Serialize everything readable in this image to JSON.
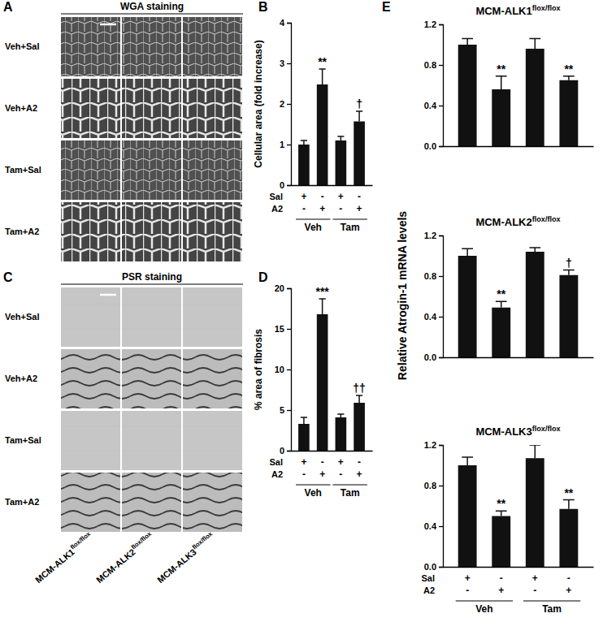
{
  "chart_data": [
    {
      "type": "bar",
      "panel": "B",
      "ylabel": "Cellular area (fold increase)",
      "categories": [
        null,
        null,
        null,
        null
      ],
      "values": [
        1.0,
        2.48,
        1.1,
        1.57
      ],
      "errors": [
        0.1,
        0.38,
        0.1,
        0.25
      ],
      "significance": [
        null,
        "**",
        null,
        "†"
      ],
      "color": "#111111",
      "ylim": [
        0,
        4
      ],
      "yticks": [
        0,
        1,
        2,
        3,
        4
      ],
      "x_table": [
        {
          "label": "Sal",
          "values": [
            "+",
            "-",
            "+",
            "-"
          ]
        },
        {
          "label": "A2",
          "values": [
            "-",
            "+",
            "-",
            "+"
          ]
        }
      ],
      "groups": [
        "Veh",
        "Tam"
      ]
    },
    {
      "type": "bar",
      "panel": "D",
      "ylabel": "% area of fibrosis",
      "categories": [
        null,
        null,
        null,
        null
      ],
      "values": [
        3.3,
        16.8,
        4.1,
        5.9
      ],
      "errors": [
        0.8,
        1.9,
        0.4,
        0.9
      ],
      "significance": [
        null,
        "***",
        null,
        "††"
      ],
      "color": "#111111",
      "ylim": [
        0,
        20
      ],
      "yticks": [
        0,
        5,
        10,
        15,
        20
      ],
      "x_table": [
        {
          "label": "Sal",
          "values": [
            "+",
            "-",
            "+",
            "-"
          ]
        },
        {
          "label": "A2",
          "values": [
            "-",
            "+",
            "-",
            "+"
          ]
        }
      ],
      "groups": [
        "Veh",
        "Tam"
      ]
    },
    {
      "type": "bar",
      "panel": "E",
      "title": "MCM-ALK1flox/flox",
      "categories": [
        null,
        null,
        null,
        null
      ],
      "values": [
        1.0,
        0.56,
        0.96,
        0.65
      ],
      "errors": [
        0.06,
        0.13,
        0.1,
        0.04
      ],
      "significance": [
        null,
        "**",
        null,
        "**"
      ],
      "color": "#111111",
      "ylim": [
        0,
        1.2
      ],
      "yticks": [
        {
          "value": 0,
          "label": "0.0"
        },
        {
          "value": 0.4,
          "label": "0.4"
        },
        {
          "value": 0.8,
          "label": "0.8"
        },
        {
          "value": 1.2,
          "label": "1.2"
        }
      ]
    },
    {
      "type": "bar",
      "title": "MCM-ALK2flox/flox",
      "ylabel": "Relative Atrogin-1 mRNA levels",
      "categories": [
        null,
        null,
        null,
        null
      ],
      "values": [
        1.0,
        0.49,
        1.04,
        0.81
      ],
      "errors": [
        0.07,
        0.06,
        0.04,
        0.05
      ],
      "significance": [
        null,
        "**",
        null,
        "†"
      ],
      "color": "#111111",
      "ylim": [
        0,
        1.2
      ],
      "yticks": [
        {
          "value": 0,
          "label": "0.0"
        },
        {
          "value": 0.4,
          "label": "0.4"
        },
        {
          "value": 0.8,
          "label": "0.8"
        },
        {
          "value": 1.2,
          "label": "1.2"
        }
      ]
    },
    {
      "type": "bar",
      "title": "MCM-ALK3flox/flox",
      "categories": [
        null,
        null,
        null,
        null
      ],
      "values": [
        1.0,
        0.5,
        1.07,
        0.57
      ],
      "errors": [
        0.08,
        0.05,
        0.13,
        0.09
      ],
      "significance": [
        null,
        "**",
        null,
        "**"
      ],
      "color": "#111111",
      "ylim": [
        0,
        1.2
      ],
      "yticks": [
        {
          "value": 0,
          "label": "0.0"
        },
        {
          "value": 0.4,
          "label": "0.4"
        },
        {
          "value": 0.8,
          "label": "0.8"
        },
        {
          "value": 1.2,
          "label": "1.2"
        }
      ],
      "x_table": [
        {
          "label": "Sal",
          "values": [
            "+",
            "-",
            "+",
            "-"
          ]
        },
        {
          "label": "A2",
          "values": [
            "-",
            "+",
            "-",
            "+"
          ]
        }
      ],
      "groups": [
        "Veh",
        "Tam"
      ]
    }
  ],
  "image_panels": [
    {
      "panel": "A",
      "title": "WGA staining",
      "rows": [
        "Veh+Sal",
        "Veh+A2",
        "Tam+Sal",
        "Tam+A2"
      ]
    },
    {
      "panel": "C",
      "title": "PSR staining",
      "rows": [
        "Veh+Sal",
        "Veh+A2",
        "Tam+Sal",
        "Tam+A2"
      ]
    }
  ],
  "column_labels": [
    "MCM-ALK1flox/flox",
    "MCM-ALK2flox/flox",
    "MCM-ALK3flox/flox"
  ]
}
